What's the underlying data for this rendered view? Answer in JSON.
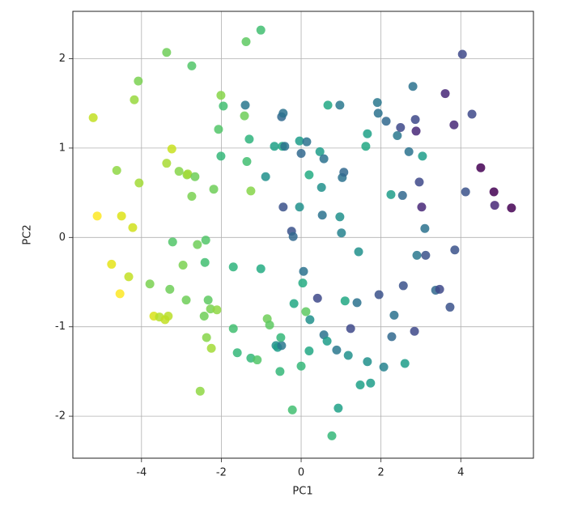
{
  "chart_data": {
    "type": "scatter",
    "xlabel": "PC1",
    "ylabel": "PC2",
    "x": [
      -5.21,
      -5.11,
      -4.75,
      -4.62,
      -4.5,
      -4.32,
      -4.54,
      -4.22,
      -4.18,
      -4.08,
      -4.06,
      -3.79,
      -3.69,
      -3.55,
      -3.41,
      -3.33,
      -3.24,
      -3.37,
      -3.37,
      -3.22,
      -3.29,
      -3.06,
      -2.96,
      -2.86,
      -2.84,
      -2.74,
      -2.74,
      -2.66,
      -2.6,
      -2.88,
      -2.53,
      -2.43,
      -2.39,
      -2.41,
      -2.33,
      -2.37,
      -2.27,
      -2.25,
      -2.19,
      -2.11,
      -2.07,
      -2.01,
      -2.01,
      -1.95,
      -1.7,
      -1.7,
      -1.6,
      -1.42,
      -1.4,
      -1.36,
      -1.26,
      -1.26,
      -1.1,
      -1.38,
      -1.01,
      -1.3,
      -1.01,
      -0.89,
      -0.85,
      -0.79,
      -0.67,
      -0.63,
      -0.59,
      -0.53,
      -0.49,
      -0.51,
      -0.49,
      -0.45,
      -0.47,
      -0.45,
      -0.41,
      -0.24,
      -0.22,
      -0.18,
      -0.2,
      -0.04,
      0,
      -0.04,
      0,
      0.04,
      0.06,
      0.12,
      0.14,
      0.2,
      0.2,
      0.22,
      0.41,
      0.47,
      0.51,
      0.57,
      0.57,
      0.53,
      0.67,
      0.65,
      0.77,
      0.89,
      0.93,
      0.97,
      1.01,
      0.97,
      1.03,
      1.07,
      1.1,
      1.18,
      1.24,
      1.4,
      1.44,
      1.48,
      1.62,
      1.66,
      1.66,
      1.74,
      1.91,
      1.93,
      1.95,
      2.07,
      2.13,
      2.25,
      2.27,
      2.33,
      2.41,
      2.49,
      2.54,
      2.56,
      2.6,
      2.7,
      2.8,
      2.86,
      2.88,
      2.84,
      2.9,
      2.96,
      3.02,
      3.04,
      3.1,
      3.12,
      3.37,
      3.47,
      3.61,
      3.73,
      3.83,
      3.85,
      4.04,
      4.12,
      4.28,
      4.5,
      4.83,
      4.85,
      5.27
    ],
    "y": [
      1.34,
      0.24,
      -0.3,
      0.75,
      0.24,
      -0.44,
      -0.63,
      0.11,
      1.54,
      1.75,
      0.61,
      -0.52,
      -0.88,
      -0.89,
      -0.92,
      -0.88,
      0.99,
      0.83,
      2.07,
      -0.05,
      -0.58,
      0.74,
      -0.31,
      0.7,
      0.71,
      1.92,
      0.46,
      0.68,
      -0.08,
      -0.7,
      -1.72,
      -0.88,
      -0.03,
      -0.28,
      -0.7,
      -1.12,
      -0.8,
      -1.24,
      0.54,
      -0.81,
      1.21,
      0.91,
      1.59,
      1.47,
      -1.02,
      -0.33,
      -1.29,
      1.36,
      1.48,
      0.85,
      0.52,
      -1.35,
      -1.37,
      2.19,
      2.32,
      1.1,
      -0.35,
      0.68,
      -0.91,
      -0.98,
      1.02,
      -1.21,
      -1.23,
      -1.5,
      -1.21,
      -1.12,
      1.35,
      1.39,
      1.02,
      0.34,
      1.02,
      0.07,
      -1.93,
      -0.74,
      0.01,
      1.08,
      0.94,
      0.34,
      -1.44,
      -0.51,
      -0.38,
      -0.83,
      1.07,
      0.7,
      -1.27,
      -0.92,
      -0.68,
      0.96,
      0.56,
      0.88,
      -1.09,
      0.25,
      1.48,
      -1.16,
      -2.22,
      -1.26,
      -1.91,
      0.23,
      0.05,
      1.48,
      0.67,
      0.73,
      -0.71,
      -1.32,
      -1.02,
      -0.73,
      -0.16,
      -1.65,
      1.02,
      1.16,
      -1.39,
      -1.63,
      1.51,
      1.39,
      -0.64,
      -1.45,
      1.3,
      0.48,
      -1.11,
      -0.87,
      1.14,
      1.23,
      0.47,
      -0.54,
      -1.41,
      0.96,
      1.69,
      1.32,
      1.19,
      -1.05,
      -0.2,
      0.62,
      0.34,
      0.91,
      0.1,
      -0.2,
      -0.59,
      -0.58,
      1.61,
      -0.78,
      1.26,
      -0.14,
      2.05,
      0.51,
      1.38,
      0.78,
      0.51,
      0.36,
      0.33
    ],
    "colors": [
      "#c2df23",
      "#fde725",
      "#e5e419",
      "#8fd744",
      "#dde318",
      "#c2df23",
      "#fde725",
      "#d0e11c",
      "#98d83e",
      "#7ad151",
      "#a2da37",
      "#7ad151",
      "#d8e219",
      "#b5de2b",
      "#c2df23",
      "#bade28",
      "#c8e020",
      "#a8db34",
      "#6ece58",
      "#52c569",
      "#6ece58",
      "#86d549",
      "#7ad151",
      "#8fd744",
      "#a2da37",
      "#52c569",
      "#7ad151",
      "#6ece58",
      "#6ece58",
      "#6ece58",
      "#8fd744",
      "#6ece58",
      "#52c569",
      "#42be71",
      "#5ec962",
      "#86d549",
      "#7ad151",
      "#a2da37",
      "#6ece58",
      "#8fd744",
      "#52c569",
      "#35b779",
      "#86d549",
      "#42be71",
      "#42be71",
      "#2fb47c",
      "#35b779",
      "#6ece58",
      "#2a788e",
      "#42be71",
      "#86d549",
      "#35b779",
      "#52c569",
      "#5ec962",
      "#42be71",
      "#2fb47c",
      "#25ab82",
      "#21918c",
      "#6ece58",
      "#5ec962",
      "#1fa187",
      "#21918c",
      "#1f9e89",
      "#35b779",
      "#2a788e",
      "#35b779",
      "#31688e",
      "#2c728e",
      "#22a884",
      "#3b528b",
      "#2c728e",
      "#3b528b",
      "#42be71",
      "#22a884",
      "#31688e",
      "#1f9e89",
      "#31688e",
      "#21918c",
      "#35b779",
      "#25ab82",
      "#2c728e",
      "#5ec962",
      "#2c728e",
      "#25ab82",
      "#22a884",
      "#21918c",
      "#3e4989",
      "#1f9e89",
      "#21918c",
      "#2c728e",
      "#2c728e",
      "#2c728e",
      "#22a884",
      "#1f9e89",
      "#35b779",
      "#2a788e",
      "#1fa187",
      "#21918c",
      "#26828e",
      "#2a788e",
      "#2c728e",
      "#31688e",
      "#22a884",
      "#21918c",
      "#3e4989",
      "#2c728e",
      "#21918c",
      "#1fa187",
      "#22a884",
      "#1fa187",
      "#21918c",
      "#1f9e89",
      "#2a788e",
      "#2c728e",
      "#3b528b",
      "#26828e",
      "#31688e",
      "#1f9e89",
      "#31688e",
      "#2c728e",
      "#2a788e",
      "#3e4989",
      "#31688e",
      "#3b528b",
      "#1f9e89",
      "#2c728e",
      "#2c728e",
      "#3e4989",
      "#482878",
      "#3e4989",
      "#2a788e",
      "#3e4989",
      "#482878",
      "#1f9e89",
      "#2c728e",
      "#3b528b",
      "#31688e",
      "#3e4989",
      "#482878",
      "#3b528b",
      "#482878",
      "#3b528b",
      "#3e4989",
      "#3b528b",
      "#3e4989",
      "#440154",
      "#440154",
      "#482878",
      "#440154"
    ],
    "xlim": [
      -5.72,
      5.82
    ],
    "ylim": [
      -2.47,
      2.53
    ],
    "xticks": [
      -4,
      -2,
      0,
      2,
      4
    ],
    "yticks": [
      -2,
      -1,
      0,
      1,
      2
    ],
    "grid": true
  }
}
